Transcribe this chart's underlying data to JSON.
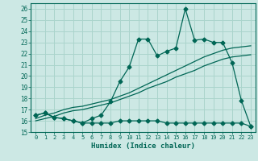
{
  "xlabel": "Humidex (Indice chaleur)",
  "bg_color": "#cce8e4",
  "grid_color": "#aad4cc",
  "line_color": "#006655",
  "xlim": [
    -0.5,
    23.5
  ],
  "ylim": [
    15,
    26.5
  ],
  "yticks": [
    15,
    16,
    17,
    18,
    19,
    20,
    21,
    22,
    23,
    24,
    25,
    26
  ],
  "xticks": [
    0,
    1,
    2,
    3,
    4,
    5,
    6,
    7,
    8,
    9,
    10,
    11,
    12,
    13,
    14,
    15,
    16,
    17,
    18,
    19,
    20,
    21,
    22,
    23
  ],
  "series1_x": [
    0,
    1,
    2,
    3,
    4,
    5,
    6,
    7,
    8,
    9,
    10,
    11,
    12,
    13,
    14,
    15,
    16,
    17,
    18,
    19,
    20,
    21,
    22,
    23
  ],
  "series1_y": [
    16.5,
    16.7,
    16.3,
    16.2,
    16.0,
    15.8,
    15.8,
    15.8,
    15.8,
    16.0,
    16.0,
    16.0,
    16.0,
    16.0,
    15.8,
    15.8,
    15.8,
    15.8,
    15.8,
    15.8,
    15.8,
    15.8,
    15.8,
    15.5
  ],
  "series2_x": [
    0,
    1,
    2,
    3,
    4,
    5,
    6,
    7,
    8,
    9,
    10,
    11,
    12,
    13,
    14,
    15,
    16,
    17,
    18,
    19,
    20,
    21,
    22,
    23
  ],
  "series2_y": [
    16.5,
    16.7,
    16.3,
    16.2,
    16.0,
    15.8,
    16.2,
    16.5,
    17.7,
    19.5,
    20.8,
    23.3,
    23.3,
    21.8,
    22.2,
    22.5,
    26.0,
    23.2,
    23.3,
    23.0,
    23.0,
    21.2,
    17.8,
    15.5
  ],
  "series3_x": [
    0,
    1,
    2,
    3,
    4,
    5,
    6,
    7,
    8,
    9,
    10,
    11,
    12,
    13,
    14,
    15,
    16,
    17,
    18,
    19,
    20,
    21,
    22,
    23
  ],
  "series3_y": [
    16.2,
    16.5,
    16.7,
    17.0,
    17.2,
    17.3,
    17.5,
    17.7,
    17.9,
    18.2,
    18.5,
    18.9,
    19.3,
    19.7,
    20.1,
    20.5,
    20.9,
    21.3,
    21.7,
    22.0,
    22.3,
    22.5,
    22.6,
    22.7
  ],
  "series4_x": [
    0,
    1,
    2,
    3,
    4,
    5,
    6,
    7,
    8,
    9,
    10,
    11,
    12,
    13,
    14,
    15,
    16,
    17,
    18,
    19,
    20,
    21,
    22,
    23
  ],
  "series4_y": [
    16.0,
    16.2,
    16.4,
    16.7,
    16.9,
    17.0,
    17.2,
    17.4,
    17.6,
    17.9,
    18.2,
    18.5,
    18.9,
    19.2,
    19.5,
    19.9,
    20.2,
    20.5,
    20.9,
    21.2,
    21.5,
    21.7,
    21.8,
    21.9
  ]
}
